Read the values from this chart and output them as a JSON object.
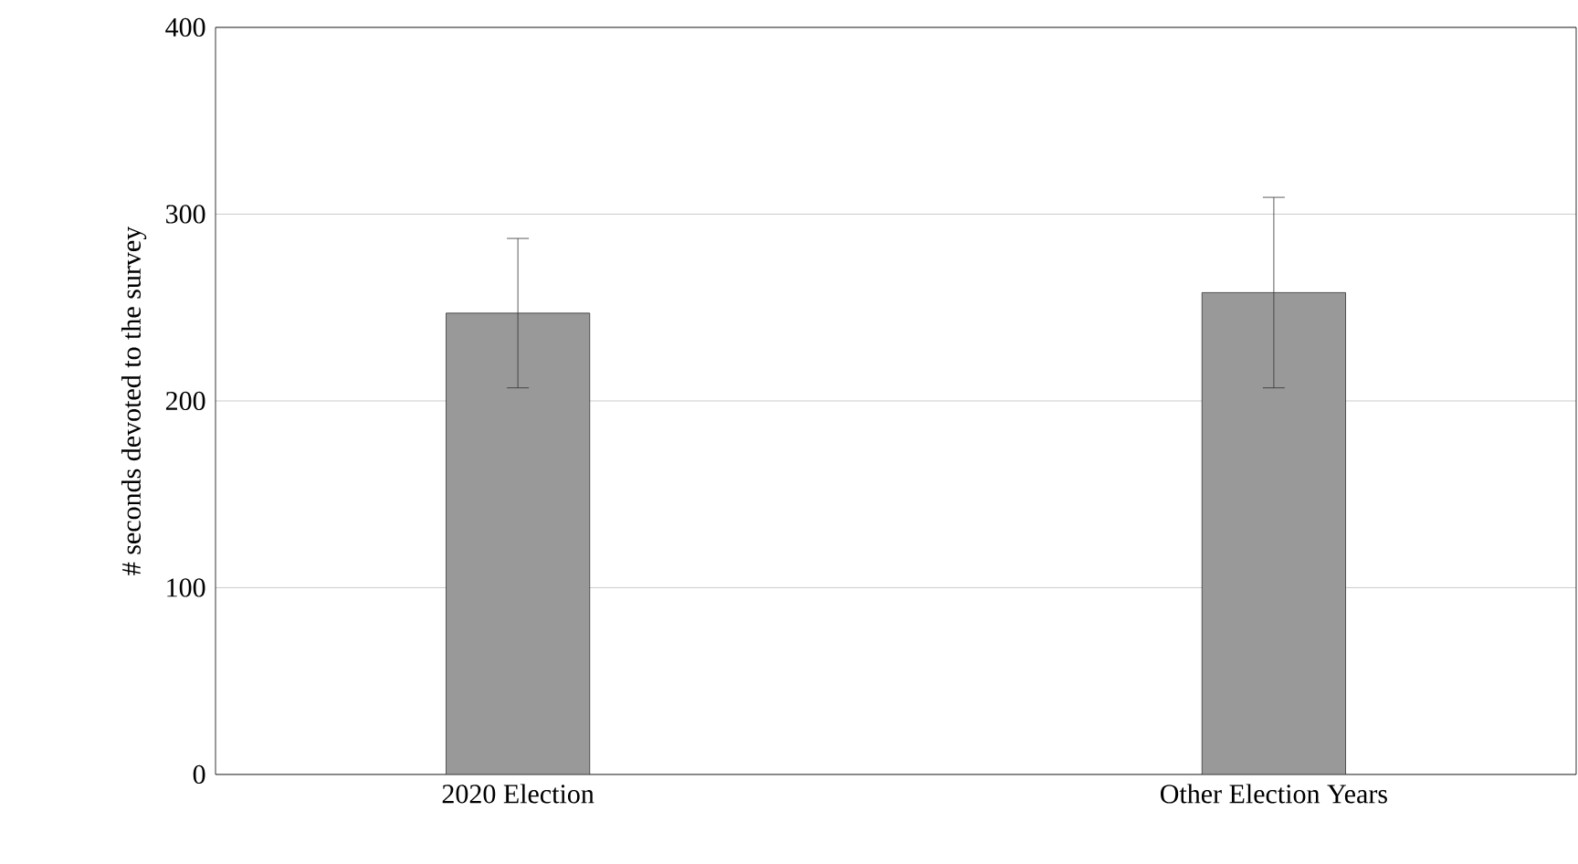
{
  "chart_data": {
    "type": "bar",
    "ylabel": "# seconds devoted to the survey",
    "categories": [
      "2020 Election",
      "Other Election Years"
    ],
    "values": [
      247,
      258
    ],
    "errors": [
      [
        207,
        287
      ],
      [
        207,
        309
      ]
    ],
    "color": "#999999",
    "ylim": [
      0,
      400
    ],
    "yticks": [
      0,
      100,
      200,
      300,
      400
    ],
    "grid": "y"
  }
}
